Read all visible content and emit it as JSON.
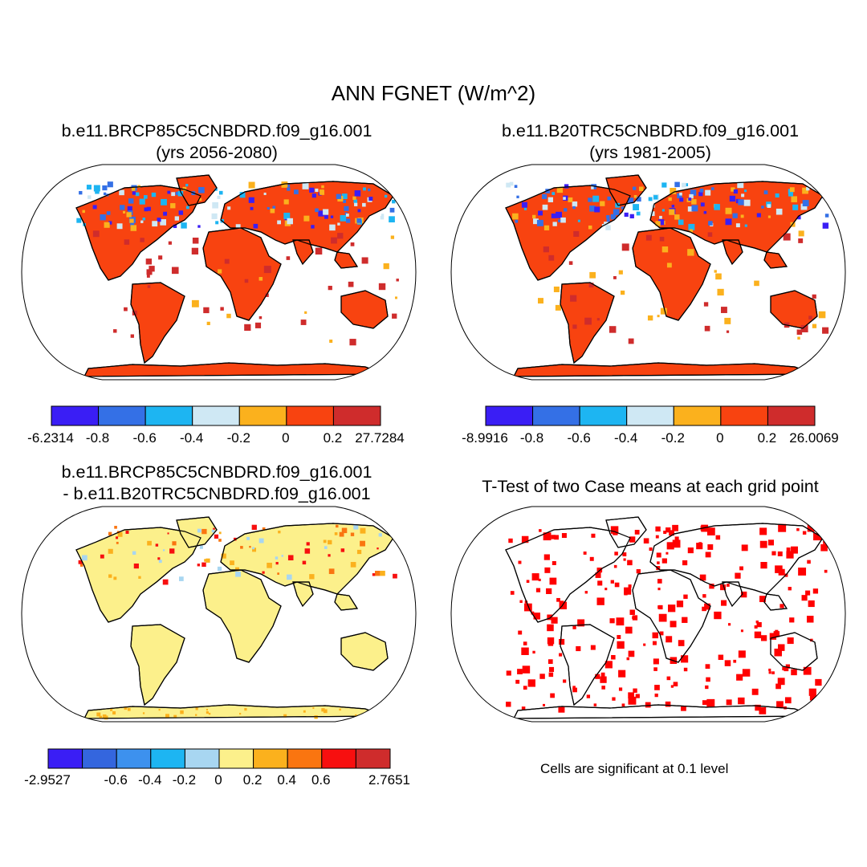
{
  "title": "ANN FGNET (W/m^2)",
  "panels": {
    "p1": {
      "title_line1": "b.e11.BRCP85C5CNBDRD.f09_g16.001",
      "title_line2": "(yrs 2056-2080)",
      "colorbar": {
        "colors": [
          "#3a1ef5",
          "#3470e6",
          "#1db5f2",
          "#cfe8f4",
          "#fbb11d",
          "#f84310",
          "#cf2c2c"
        ],
        "labels": [
          "-6.2314",
          "-0.8",
          "-0.6",
          "-0.4",
          "-0.2",
          "0",
          "0.2",
          "27.7284"
        ]
      }
    },
    "p2": {
      "title_line1": "b.e11.B20TRC5CNBDRD.f09_g16.001",
      "title_line2": "(yrs 1981-2005)",
      "colorbar": {
        "colors": [
          "#3a1ef5",
          "#3470e6",
          "#1db5f2",
          "#cfe8f4",
          "#fbb11d",
          "#f84310",
          "#cf2c2c"
        ],
        "labels": [
          "-8.9916",
          "-0.8",
          "-0.6",
          "-0.4",
          "-0.2",
          "0",
          "0.2",
          "26.0069"
        ]
      }
    },
    "p3": {
      "title_line1": "b.e11.BRCP85C5CNBDRD.f09_g16.001",
      "title_line2": "- b.e11.B20TRC5CNBDRD.f09_g16.001",
      "colorbar": {
        "colors": [
          "#3a1ef5",
          "#3466de",
          "#3d91ee",
          "#1db5f2",
          "#a8d6f1",
          "#fcf08b",
          "#fbb11d",
          "#fa7510",
          "#f70f0f",
          "#cf2c2c"
        ],
        "labels": [
          "-2.9527",
          "",
          "-0.6",
          "-0.4",
          "-0.2",
          "0",
          "0.2",
          "0.4",
          "0.6",
          "",
          "2.7651"
        ]
      }
    },
    "p4": {
      "title_line1": "T-Test of two Case means at each grid point",
      "note": "Cells are significant at 0.1 level"
    }
  }
}
